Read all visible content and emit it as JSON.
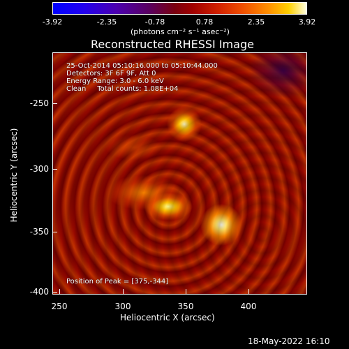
{
  "colorbar": {
    "tick_labels": [
      "-3.92",
      "-2.35",
      "-0.78",
      "0.78",
      "2.35",
      "3.92"
    ],
    "units": "(photons cm⁻² s⁻¹ asec⁻²)"
  },
  "title": "Reconstructed RHESSI Image",
  "info_lines": [
    "25-Oct-2014 05:10:16.000 to 05:10:44.000",
    "Detectors: 3F 6F 9F, Att 0",
    "Energy Range: 3.0 - 6.0 keV",
    "Clean     Total counts: 1.08E+04"
  ],
  "peak_text": "Position of Peak = [375,-344]",
  "axes": {
    "xlabel": "Heliocentric X (arcsec)",
    "ylabel": "Heliocentric Y (arcsec)",
    "xticks": [
      "250",
      "300",
      "350",
      "400"
    ],
    "yticks": [
      "-250",
      "-300",
      "-350",
      "-400"
    ]
  },
  "datestamp": "18-May-2022 16:10",
  "colors": {
    "background": "#000000",
    "foreground": "#ffffff",
    "colormap": "hot / blue-white"
  }
}
